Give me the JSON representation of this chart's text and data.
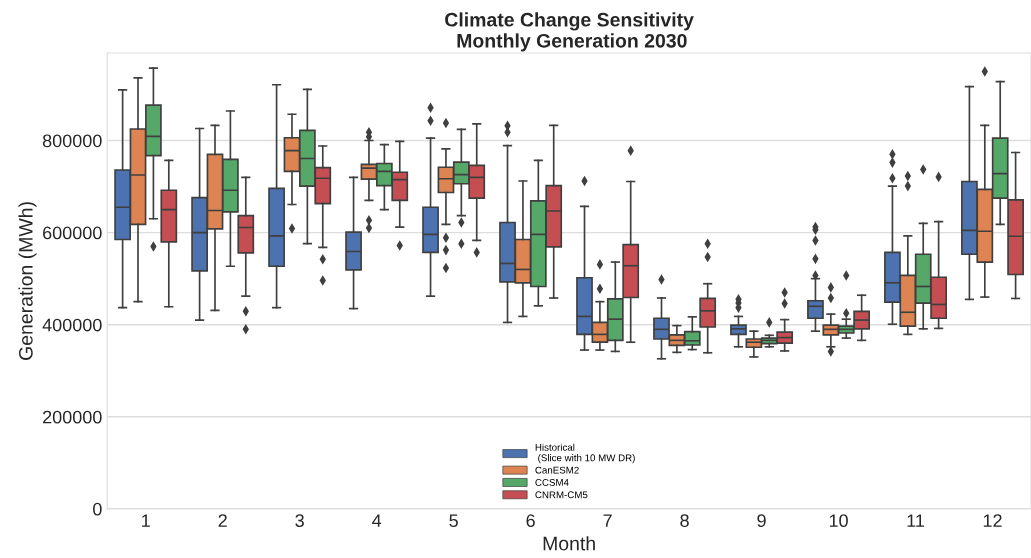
{
  "chart_data": {
    "type": "box",
    "title": "Climate Change Sensitivity\n Monthly Generation 2030",
    "xlabel": "Month",
    "ylabel": "Generation (MWh)",
    "categories": [
      "1",
      "2",
      "3",
      "4",
      "5",
      "6",
      "7",
      "8",
      "9",
      "10",
      "11",
      "12"
    ],
    "ylim": [
      0,
      990000
    ],
    "yticks": [
      0,
      200000,
      400000,
      600000,
      800000
    ],
    "grid": "y",
    "legend": "bottom",
    "series": [
      {
        "name": "Historical\n (Slice with 10 MW DR)",
        "color": "#4c72b0",
        "boxes": [
          {
            "low": 437000,
            "q1": 585000,
            "median": 655000,
            "q3": 736000,
            "high": 910000
          },
          {
            "low": 410000,
            "q1": 517000,
            "median": 600000,
            "q3": 676000,
            "high": 826000
          },
          {
            "low": 437000,
            "q1": 527000,
            "median": 593000,
            "q3": 696000,
            "high": 921000
          },
          {
            "low": 435000,
            "q1": 519000,
            "median": 559000,
            "q3": 601000,
            "high": 720000
          },
          {
            "low": 462000,
            "q1": 557000,
            "median": 596000,
            "q3": 655000,
            "high": 805000,
            "outliers": [
              843000,
              871000
            ]
          },
          {
            "low": 405000,
            "q1": 493000,
            "median": 533000,
            "q3": 622000,
            "high": 789000,
            "outliers": [
              818000,
              832000
            ]
          },
          {
            "low": 345000,
            "q1": 379000,
            "median": 418000,
            "q3": 502000,
            "high": 657000,
            "outliers": [
              712000
            ]
          },
          {
            "low": 326000,
            "q1": 369000,
            "median": 390000,
            "q3": 414000,
            "high": 458000,
            "outliers": [
              498000
            ]
          },
          {
            "low": 352000,
            "q1": 379000,
            "median": 391000,
            "q3": 399000,
            "high": 418000,
            "outliers": [
              437000,
              447000,
              455000
            ]
          },
          {
            "low": 386000,
            "q1": 414000,
            "median": 440000,
            "q3": 452000,
            "high": 500000,
            "outliers": [
              507000,
              543000,
              583000,
              606000,
              612000
            ]
          },
          {
            "low": 401000,
            "q1": 449000,
            "median": 491000,
            "q3": 557000,
            "high": 701000,
            "outliers": [
              718000,
              752000,
              770000
            ]
          },
          {
            "low": 455000,
            "q1": 553000,
            "median": 605000,
            "q3": 711000,
            "high": 917000
          }
        ]
      },
      {
        "name": "CanESM2",
        "color": "#dd8452",
        "boxes": [
          {
            "low": 450000,
            "q1": 618000,
            "median": 725000,
            "q3": 825000,
            "high": 936000
          },
          {
            "low": 431000,
            "q1": 608000,
            "median": 648000,
            "q3": 770000,
            "high": 833000
          },
          {
            "low": 661000,
            "q1": 733000,
            "median": 778000,
            "q3": 806000,
            "high": 857000,
            "outliers": [
              609000
            ]
          },
          {
            "low": 670000,
            "q1": 716000,
            "median": 740000,
            "q3": 748000,
            "high": 800000,
            "outliers": [
              610000,
              627000,
              808000,
              818000
            ]
          },
          {
            "low": 618000,
            "q1": 687000,
            "median": 717000,
            "q3": 742000,
            "high": 782000,
            "outliers": [
              523000,
              562000,
              589000,
              838000
            ]
          },
          {
            "low": 418000,
            "q1": 491000,
            "median": 520000,
            "q3": 585000,
            "high": 712000
          },
          {
            "low": 345000,
            "q1": 362000,
            "median": 379000,
            "q3": 405000,
            "high": 450000,
            "outliers": [
              478000,
              531000
            ]
          },
          {
            "low": 340000,
            "q1": 355000,
            "median": 366000,
            "q3": 378000,
            "high": 398000
          },
          {
            "low": 330000,
            "q1": 351000,
            "median": 362000,
            "q3": 369000,
            "high": 386000
          },
          {
            "low": 352000,
            "q1": 378000,
            "median": 390000,
            "q3": 399000,
            "high": 423000,
            "outliers": [
              342000,
              458000,
              481000
            ]
          },
          {
            "low": 379000,
            "q1": 397000,
            "median": 427000,
            "q3": 507000,
            "high": 593000,
            "outliers": [
              701000,
              723000
            ]
          },
          {
            "low": 460000,
            "q1": 536000,
            "median": 603000,
            "q3": 694000,
            "high": 833000,
            "outliers": [
              950000
            ]
          }
        ]
      },
      {
        "name": "CCSM4",
        "color": "#55a868",
        "boxes": [
          {
            "low": 630000,
            "q1": 767000,
            "median": 809000,
            "q3": 877000,
            "high": 957000,
            "outliers": [
              570000
            ]
          },
          {
            "low": 527000,
            "q1": 645000,
            "median": 692000,
            "q3": 759000,
            "high": 864000
          },
          {
            "low": 576000,
            "q1": 701000,
            "median": 761000,
            "q3": 822000,
            "high": 911000
          },
          {
            "low": 650000,
            "q1": 702000,
            "median": 733000,
            "q3": 750000,
            "high": 791000
          },
          {
            "low": 637000,
            "q1": 706000,
            "median": 726000,
            "q3": 753000,
            "high": 824000,
            "outliers": [
              576000,
              622000
            ]
          },
          {
            "low": 441000,
            "q1": 483000,
            "median": 596000,
            "q3": 669000,
            "high": 757000
          },
          {
            "low": 342000,
            "q1": 366000,
            "median": 412000,
            "q3": 456000,
            "high": 536000
          },
          {
            "low": 346000,
            "q1": 356000,
            "median": 365000,
            "q3": 385000,
            "high": 417000
          },
          {
            "low": 352000,
            "q1": 359000,
            "median": 366000,
            "q3": 371000,
            "high": 377000,
            "outliers": [
              405000
            ]
          },
          {
            "low": 371000,
            "q1": 382000,
            "median": 390000,
            "q3": 397000,
            "high": 412000,
            "outliers": [
              425000,
              507000
            ]
          },
          {
            "low": 391000,
            "q1": 447000,
            "median": 483000,
            "q3": 553000,
            "high": 620000,
            "outliers": [
              737000
            ]
          },
          {
            "low": 618000,
            "q1": 675000,
            "median": 728000,
            "q3": 805000,
            "high": 928000
          }
        ]
      },
      {
        "name": "CNRM-CM5",
        "color": "#c44e52",
        "boxes": [
          {
            "low": 439000,
            "q1": 580000,
            "median": 650000,
            "q3": 692000,
            "high": 757000
          },
          {
            "low": 462000,
            "q1": 556000,
            "median": 611000,
            "q3": 637000,
            "high": 720000,
            "outliers": [
              390000,
              429000
            ]
          },
          {
            "low": 568000,
            "q1": 663000,
            "median": 718000,
            "q3": 741000,
            "high": 788000,
            "outliers": [
              496000,
              542000
            ]
          },
          {
            "low": 612000,
            "q1": 670000,
            "median": 715000,
            "q3": 731000,
            "high": 798000,
            "outliers": [
              572000
            ]
          },
          {
            "low": 583000,
            "q1": 675000,
            "median": 720000,
            "q3": 746000,
            "high": 836000,
            "outliers": [
              557000
            ]
          },
          {
            "low": 458000,
            "q1": 569000,
            "median": 647000,
            "q3": 702000,
            "high": 833000
          },
          {
            "low": 362000,
            "q1": 459000,
            "median": 528000,
            "q3": 574000,
            "high": 711000,
            "outliers": [
              778000
            ]
          },
          {
            "low": 339000,
            "q1": 395000,
            "median": 430000,
            "q3": 457000,
            "high": 489000,
            "outliers": [
              547000,
              576000
            ]
          },
          {
            "low": 343000,
            "q1": 360000,
            "median": 372000,
            "q3": 384000,
            "high": 411000,
            "outliers": [
              446000,
              470000
            ]
          },
          {
            "low": 366000,
            "q1": 391000,
            "median": 410000,
            "q3": 429000,
            "high": 464000
          },
          {
            "low": 392000,
            "q1": 414000,
            "median": 444000,
            "q3": 503000,
            "high": 624000,
            "outliers": [
              721000
            ]
          },
          {
            "low": 457000,
            "q1": 509000,
            "median": 592000,
            "q3": 671000,
            "high": 774000
          }
        ]
      }
    ]
  }
}
